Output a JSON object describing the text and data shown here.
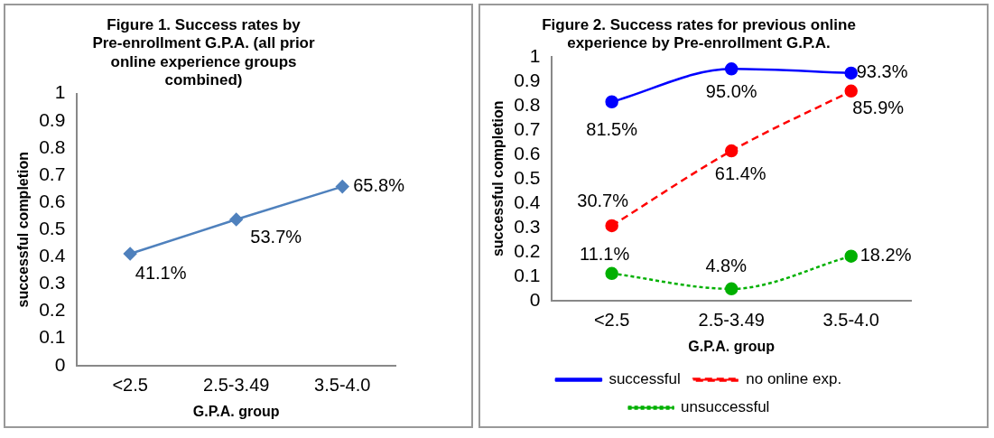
{
  "chart_data": [
    {
      "type": "line",
      "title": "Figure 1. Success rates by Pre-enrollment G.P.A. (all prior online experience groups combined)",
      "xlabel": "G.P.A. group",
      "ylabel": "successful completion",
      "categories": [
        "<2.5",
        "2.5-3.49",
        "3.5-4.0"
      ],
      "series": [
        {
          "color": "#4f81bd",
          "values": [
            0.411,
            0.537,
            0.658
          ],
          "value_labels": [
            "41.1%",
            "53.7%",
            "65.8%"
          ]
        }
      ],
      "ylim": [
        0,
        1
      ],
      "yticks": [
        0,
        0.1,
        0.2,
        0.3,
        0.4,
        0.5,
        0.6,
        0.7,
        0.8,
        0.9,
        1
      ],
      "grid": false,
      "legend": false,
      "marker": "diamond",
      "line_style": "solid"
    },
    {
      "type": "line",
      "title": "Figure 2. Success rates for previous online experience by Pre-enrollment G.P.A.",
      "xlabel": "G.P.A. group",
      "ylabel": "successful completion",
      "categories": [
        "<2.5",
        "2.5-3.49",
        "3.5-4.0"
      ],
      "series": [
        {
          "name": "successful",
          "color": "#0000ff",
          "values": [
            0.815,
            0.95,
            0.933
          ],
          "value_labels": [
            "81.5%",
            "95.0%",
            "93.3%"
          ],
          "line_style": "solid"
        },
        {
          "name": "no online exp.",
          "color": "#ff0000",
          "values": [
            0.307,
            0.614,
            0.859
          ],
          "value_labels": [
            "30.7%",
            "61.4%",
            "85.9%"
          ],
          "line_style": "dashed"
        },
        {
          "name": "unsuccessful",
          "color": "#00b000",
          "values": [
            0.111,
            0.048,
            0.182
          ],
          "value_labels": [
            "11.1%",
            "4.8%",
            "18.2%"
          ],
          "line_style": "dotted"
        }
      ],
      "ylim": [
        0,
        1
      ],
      "yticks": [
        0,
        0.1,
        0.2,
        0.3,
        0.4,
        0.5,
        0.6,
        0.7,
        0.8,
        0.9,
        1
      ],
      "grid": false,
      "legend": "bottom",
      "marker": "circle"
    }
  ]
}
